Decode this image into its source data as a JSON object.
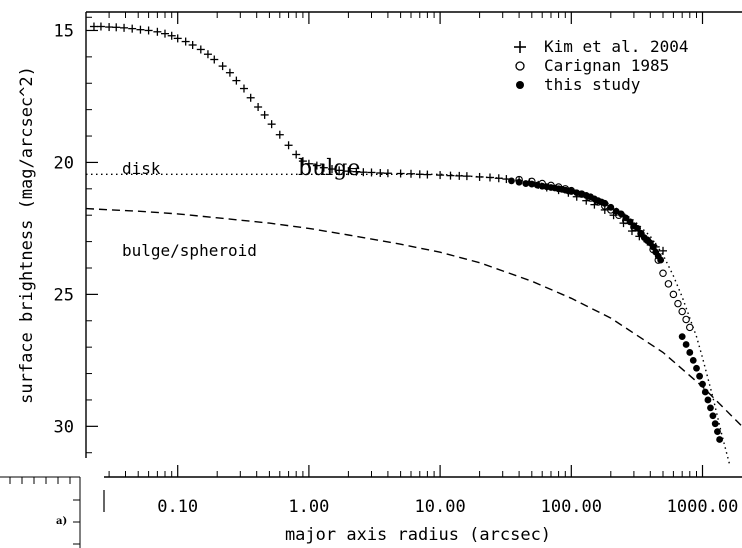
{
  "chart_data": {
    "type": "scatter",
    "xlabel": "major axis radius (arcsec)",
    "ylabel": "surface brightness (mag/arcsec^2)",
    "x_scale": "log",
    "xlim": [
      0.02,
      2000
    ],
    "ylim": [
      31.2,
      14.3
    ],
    "y_inverted": true,
    "x_ticks": [
      "0.10",
      "1.00",
      "10.00",
      "100.00",
      "1000.00"
    ],
    "y_ticks": [
      "15",
      "20",
      "25",
      "30"
    ],
    "legend": {
      "position": "top-right",
      "entries": [
        "Kim et al. 2004",
        "Carignan 1985",
        "this study"
      ]
    },
    "annotations": {
      "disk": "disk",
      "bulge_spheroid": "bulge/spheroid",
      "bulge_overlay": "bulge",
      "inset_label": "a)"
    },
    "series": [
      {
        "name": "Kim et al. 2004",
        "marker": "plus",
        "x": [
          0.023,
          0.026,
          0.03,
          0.034,
          0.039,
          0.045,
          0.052,
          0.06,
          0.07,
          0.08,
          0.09,
          0.1,
          0.115,
          0.13,
          0.15,
          0.17,
          0.19,
          0.22,
          0.25,
          0.28,
          0.32,
          0.36,
          0.41,
          0.46,
          0.52,
          0.6,
          0.7,
          0.8,
          0.9,
          1.0,
          1.15,
          1.3,
          1.5,
          1.7,
          2.0,
          2.3,
          2.6,
          3.0,
          3.5,
          4,
          5,
          6,
          7,
          8,
          10,
          12,
          14,
          16,
          20,
          24,
          28,
          32,
          40,
          48,
          56,
          65,
          80,
          95,
          110,
          130,
          150,
          180,
          210,
          250,
          290,
          330,
          380,
          440,
          500
        ],
        "y": [
          14.85,
          14.85,
          14.87,
          14.88,
          14.9,
          14.93,
          14.97,
          15.0,
          15.05,
          15.12,
          15.2,
          15.3,
          15.42,
          15.55,
          15.72,
          15.9,
          16.1,
          16.35,
          16.6,
          16.9,
          17.2,
          17.55,
          17.9,
          18.2,
          18.55,
          18.95,
          19.35,
          19.7,
          19.95,
          20.05,
          20.12,
          20.2,
          20.25,
          20.3,
          20.33,
          20.35,
          20.37,
          20.38,
          20.4,
          20.41,
          20.42,
          20.43,
          20.45,
          20.46,
          20.48,
          20.5,
          20.51,
          20.52,
          20.55,
          20.57,
          20.6,
          20.63,
          20.7,
          20.75,
          20.85,
          20.95,
          21.05,
          21.15,
          21.3,
          21.45,
          21.6,
          21.8,
          22.0,
          22.3,
          22.6,
          22.8,
          23.0,
          23.2,
          23.35
        ]
      },
      {
        "name": "Carignan 1985",
        "marker": "circle-open",
        "x": [
          40,
          50,
          60,
          70,
          80,
          90,
          100,
          120,
          140,
          160,
          180,
          200,
          230,
          260,
          300,
          340,
          380,
          420,
          460,
          500,
          550,
          600,
          650,
          700,
          750,
          800
        ],
        "y": [
          20.65,
          20.72,
          20.8,
          20.87,
          20.93,
          21.0,
          21.07,
          21.2,
          21.35,
          21.5,
          21.65,
          21.8,
          22.0,
          22.2,
          22.45,
          22.7,
          22.95,
          23.3,
          23.7,
          24.2,
          24.6,
          25.0,
          25.35,
          25.65,
          25.95,
          26.25
        ]
      },
      {
        "name": "this study",
        "marker": "circle-filled",
        "x": [
          35,
          40,
          45,
          50,
          55,
          60,
          65,
          70,
          75,
          80,
          85,
          90,
          95,
          100,
          110,
          120,
          130,
          140,
          150,
          160,
          170,
          180,
          200,
          220,
          240,
          260,
          280,
          300,
          320,
          340,
          360,
          380,
          400,
          420,
          440,
          460,
          480,
          700,
          750,
          800,
          850,
          900,
          950,
          1000,
          1050,
          1100,
          1150,
          1200,
          1250,
          1300,
          1350
        ],
        "y": [
          20.7,
          20.75,
          20.8,
          20.82,
          20.86,
          20.9,
          20.92,
          20.95,
          20.97,
          21.0,
          21.02,
          21.05,
          21.08,
          21.1,
          21.15,
          21.2,
          21.25,
          21.3,
          21.38,
          21.45,
          21.5,
          21.55,
          21.7,
          21.85,
          21.95,
          22.1,
          22.25,
          22.4,
          22.5,
          22.7,
          22.85,
          22.95,
          23.05,
          23.2,
          23.4,
          23.55,
          23.7,
          26.6,
          26.9,
          27.2,
          27.5,
          27.8,
          28.1,
          28.4,
          28.7,
          29.0,
          29.3,
          29.6,
          29.9,
          30.2,
          30.5
        ]
      },
      {
        "name": "disk",
        "style": "dotted",
        "x": [
          0.02,
          2,
          10,
          30,
          60,
          100,
          150,
          200,
          300,
          400,
          500,
          600,
          700,
          800,
          900,
          1000,
          1200,
          1400,
          1600
        ],
        "y": [
          20.45,
          20.45,
          20.45,
          20.6,
          20.8,
          21.0,
          21.3,
          21.6,
          22.2,
          22.8,
          23.5,
          24.3,
          25.1,
          25.9,
          26.6,
          27.4,
          28.9,
          30.3,
          31.4
        ]
      },
      {
        "name": "bulge/spheroid",
        "style": "dashed",
        "x": [
          0.02,
          0.05,
          0.1,
          0.2,
          0.5,
          1,
          2,
          5,
          10,
          20,
          50,
          100,
          200,
          500,
          1000,
          2000
        ],
        "y": [
          21.75,
          21.85,
          21.95,
          22.1,
          22.3,
          22.5,
          22.75,
          23.1,
          23.4,
          23.8,
          24.5,
          25.15,
          25.9,
          27.2,
          28.5,
          30.0
        ]
      }
    ]
  }
}
